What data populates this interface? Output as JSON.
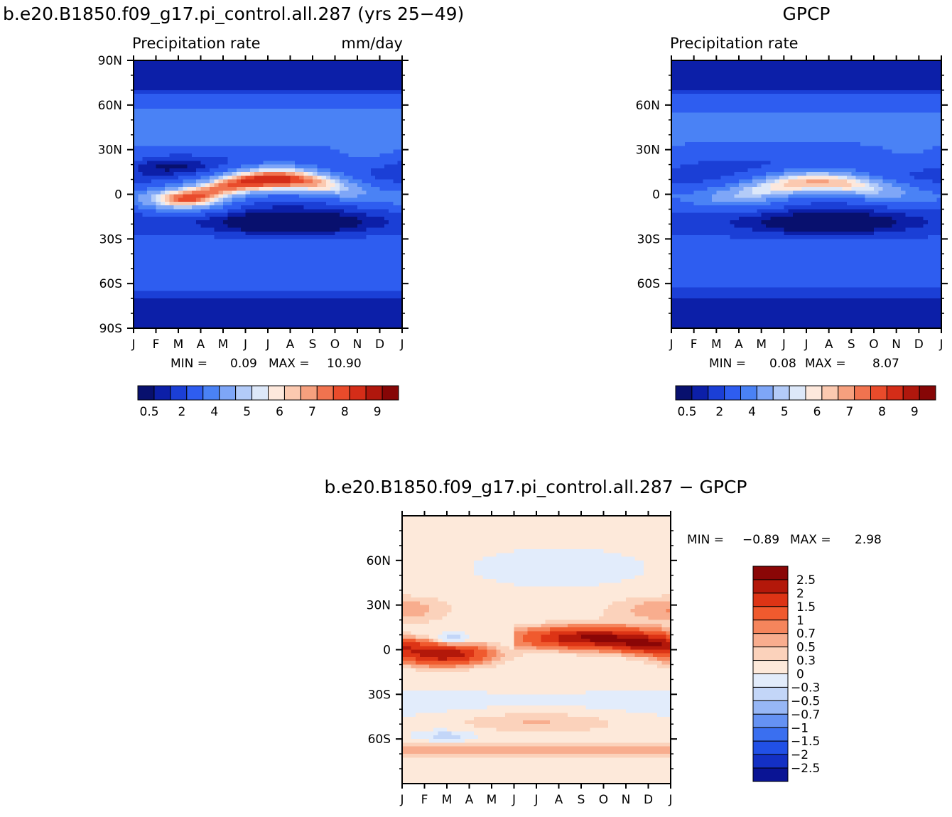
{
  "chart_data": [
    {
      "type": "heatmap",
      "id": "model",
      "title": "b.e20.B1850.f09_g17.pi_control.all.287 (yrs 25−49)",
      "left_string": "Precipitation rate",
      "right_string": "mm/day",
      "x_ticks": [
        "J",
        "F",
        "M",
        "A",
        "M",
        "J",
        "J",
        "A",
        "S",
        "O",
        "N",
        "D",
        "J"
      ],
      "y_ticks": [
        "90N",
        "60N",
        "30N",
        "0",
        "30S",
        "60S",
        "90S"
      ],
      "y_tick_values": [
        90,
        60,
        30,
        0,
        -30,
        -60,
        -90
      ],
      "ylim": [
        -90,
        90
      ],
      "min_label": "MIN =",
      "min_value": "0.09",
      "max_label": "MAX =",
      "max_value": "10.90",
      "colorbar_labels": [
        "0.5",
        "2",
        "4",
        "5",
        "6",
        "7",
        "8",
        "9"
      ],
      "levels": [
        0.2,
        0.5,
        1,
        2,
        3,
        4,
        4.5,
        5,
        5.5,
        6,
        6.5,
        7,
        7.5,
        8,
        8.5,
        9
      ],
      "colors": [
        "#08106e",
        "#0c1fa8",
        "#1b3fd6",
        "#2e5df0",
        "#4a82f5",
        "#7ea6f7",
        "#b3cbf8",
        "#dde8f9",
        "#fde8dc",
        "#fbc9b0",
        "#f6a07e",
        "#f1734f",
        "#e94b2b",
        "#d42d18",
        "#b0170d",
        "#860606"
      ],
      "field": "precip_model"
    },
    {
      "type": "heatmap",
      "id": "obs",
      "title": "GPCP",
      "left_string": "Precipitation rate",
      "right_string": "",
      "x_ticks": [
        "J",
        "F",
        "M",
        "A",
        "M",
        "J",
        "J",
        "A",
        "S",
        "O",
        "N",
        "D",
        "J"
      ],
      "y_ticks": [
        "60N",
        "30N",
        "0",
        "30S",
        "60S"
      ],
      "y_tick_values": [
        60,
        30,
        0,
        -30,
        -60
      ],
      "ylim": [
        -90,
        90
      ],
      "min_label": "MIN =",
      "min_value": "0.08",
      "max_label": "MAX =",
      "max_value": "8.07",
      "colorbar_labels": [
        "0.5",
        "2",
        "4",
        "5",
        "6",
        "7",
        "8",
        "9"
      ],
      "levels": [
        0.2,
        0.5,
        1,
        2,
        3,
        4,
        4.5,
        5,
        5.5,
        6,
        6.5,
        7,
        7.5,
        8,
        8.5,
        9
      ],
      "colors": [
        "#08106e",
        "#0c1fa8",
        "#1b3fd6",
        "#2e5df0",
        "#4a82f5",
        "#7ea6f7",
        "#b3cbf8",
        "#dde8f9",
        "#fde8dc",
        "#fbc9b0",
        "#f6a07e",
        "#f1734f",
        "#e94b2b",
        "#d42d18",
        "#b0170d",
        "#860606"
      ],
      "field": "precip_obs"
    },
    {
      "type": "heatmap",
      "id": "diff",
      "title": "b.e20.B1850.f09_g17.pi_control.all.287 − GPCP",
      "left_string": "",
      "right_string": "",
      "x_ticks": [
        "J",
        "F",
        "M",
        "A",
        "M",
        "J",
        "J",
        "A",
        "S",
        "O",
        "N",
        "D",
        "J"
      ],
      "y_ticks": [
        "60N",
        "30N",
        "0",
        "30S",
        "60S"
      ],
      "y_tick_values": [
        60,
        30,
        0,
        -30,
        -60
      ],
      "ylim": [
        -90,
        90
      ],
      "min_label": "MIN =",
      "min_value": "−0.89",
      "max_label": "MAX =",
      "max_value": "2.98",
      "colorbar_labels": [
        "2.5",
        "2",
        "1.5",
        "1",
        "0.7",
        "0.5",
        "0.3",
        "0",
        "−0.3",
        "−0.5",
        "−0.7",
        "−1",
        "−1.5",
        "−2",
        "−2.5"
      ],
      "levels": [
        -2.5,
        -2,
        -1.5,
        -1,
        -0.7,
        -0.5,
        -0.3,
        0,
        0.3,
        0.5,
        0.7,
        1,
        1.5,
        2,
        2.5
      ],
      "colors": [
        "#0a1494",
        "#1330c4",
        "#2150e6",
        "#3a6ff0",
        "#6592f3",
        "#97b7f6",
        "#c3d6f8",
        "#e2ecfb",
        "#fde9da",
        "#fbd2bb",
        "#f8ad8e",
        "#f5855c",
        "#f05a2e",
        "#dd3415",
        "#b3180a",
        "#8a0606"
      ],
      "field": "precip_diff"
    }
  ]
}
